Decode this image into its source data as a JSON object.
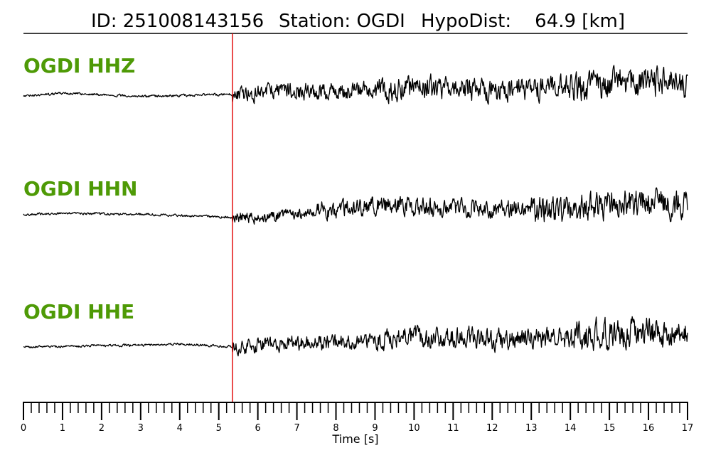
{
  "header": {
    "id_text": "ID: 251008143156",
    "station_text": "Station: OGDI",
    "hypodist_text": "HypoDist:    64.9 [km]"
  },
  "colors": {
    "label": "#4e9a06",
    "trace": "#000000",
    "pick_line": "#e00000",
    "axis": "#000000"
  },
  "chart_data": {
    "type": "line",
    "xlabel": "Time [s]",
    "ylabel": "",
    "xlim": [
      0,
      17
    ],
    "x_ticks": [
      "0",
      "1",
      "2",
      "3",
      "4",
      "5",
      "6",
      "7",
      "8",
      "9",
      "10",
      "11",
      "12",
      "13",
      "14",
      "15",
      "16",
      "17"
    ],
    "minor_tick_step": 0.2,
    "pick_time": 5.35,
    "grid": false,
    "series": [
      {
        "name": "OGDI HHZ",
        "x": [
          0,
          1,
          2,
          3,
          4,
          5,
          5.35,
          6,
          7,
          8,
          9,
          10,
          11,
          12,
          13,
          14,
          15,
          16,
          17
        ],
        "y": [
          0,
          0.16,
          0.08,
          -0.02,
          0.02,
          0.08,
          0.1,
          0.25,
          0.3,
          0.25,
          0.35,
          0.5,
          0.5,
          0.3,
          0.4,
          0.55,
          0.7,
          0.8,
          0.6
        ]
      },
      {
        "name": "OGDI HHN",
        "x": [
          0,
          1,
          2,
          3,
          4,
          5,
          5.35,
          6,
          7,
          8,
          9,
          10,
          11,
          12,
          13,
          14,
          15,
          16,
          17
        ],
        "y": [
          0,
          0.08,
          0.06,
          0.02,
          -0.04,
          -0.12,
          -0.15,
          -0.2,
          0.1,
          0.3,
          0.55,
          0.45,
          0.4,
          0.35,
          0.3,
          0.35,
          0.55,
          0.75,
          0.5
        ]
      },
      {
        "name": "OGDI HHE",
        "x": [
          0,
          1,
          2,
          3,
          4,
          5,
          5.35,
          6,
          7,
          8,
          9,
          10,
          11,
          12,
          13,
          14,
          15,
          16,
          17
        ],
        "y": [
          0,
          0.04,
          0.08,
          0.1,
          0.18,
          0.06,
          0.02,
          0.1,
          0.2,
          0.25,
          0.45,
          0.5,
          0.55,
          0.45,
          0.45,
          0.55,
          0.75,
          0.85,
          0.6
        ]
      }
    ]
  }
}
